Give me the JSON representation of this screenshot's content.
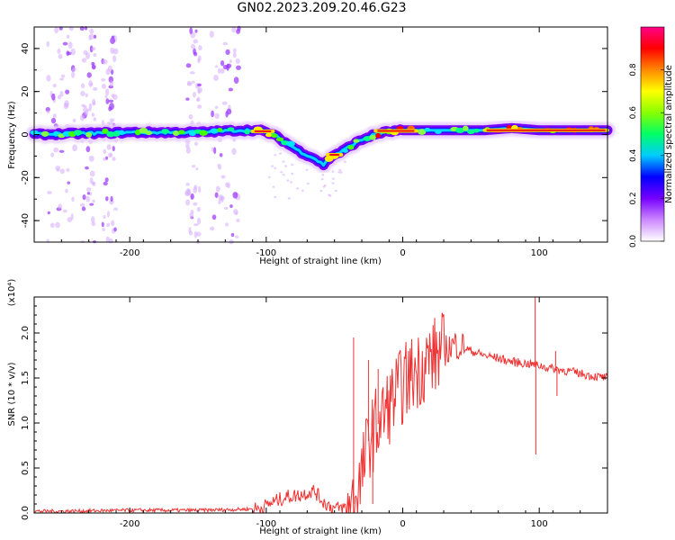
{
  "title": "GN02.2023.209.20.46.G23",
  "chart_data": [
    {
      "type": "heatmap",
      "xlabel": "Height of straight line (km)",
      "ylabel": "Frequency (Hz)",
      "xlim": [
        -270,
        150
      ],
      "ylim": [
        -50,
        50
      ],
      "xticks": [
        -200,
        -100,
        0,
        100
      ],
      "yticks": [
        -40,
        -20,
        0,
        20,
        40
      ],
      "colorbar": {
        "label": "Normalized spectral amplitude",
        "range": [
          0.0,
          1.0
        ],
        "ticks": [
          0.0,
          0.2,
          0.4,
          0.6,
          0.8
        ],
        "tick_labels": [
          "0.0",
          "0.2",
          "0.4",
          "0.6",
          "0.8"
        ],
        "colormap": [
          "#ffffff",
          "#cc88ff",
          "#7700ff",
          "#0000ff",
          "#00ccff",
          "#00ff66",
          "#88ff00",
          "#ffff00",
          "#ff8800",
          "#ff0000",
          "#ff0088"
        ]
      },
      "ridge": {
        "x": [
          -270,
          -200,
          -150,
          -120,
          -105,
          -95,
          -85,
          -75,
          -65,
          -58,
          -52,
          -45,
          -35,
          -25,
          -15,
          0,
          20,
          40,
          60,
          80,
          100,
          120,
          150
        ],
        "y": [
          0,
          1,
          1,
          2,
          2,
          0,
          -4,
          -8,
          -11,
          -14,
          -10,
          -8,
          -4,
          -1,
          1,
          2,
          2,
          2,
          2,
          3,
          2,
          2,
          2
        ],
        "peak_x_ranges": [
          [
            -110,
            -95
          ],
          [
            -55,
            -45
          ],
          [
            -20,
            10
          ],
          [
            60,
            150
          ]
        ]
      },
      "noise_bands_x": [
        [
          -260,
          -240
        ],
        [
          -235,
          -225
        ],
        [
          -220,
          -210
        ],
        [
          -158,
          -148
        ],
        [
          -140,
          -120
        ]
      ]
    },
    {
      "type": "line",
      "xlabel": "Height of straight line (km)",
      "ylabel": "SNR (10 * v/v)",
      "y_multiplier": "(x10⁴)",
      "xlim": [
        -270,
        150
      ],
      "ylim": [
        0,
        2.4
      ],
      "xticks": [
        -200,
        -100,
        0,
        100
      ],
      "yticks": [
        0.0,
        0.5,
        1.0,
        1.5,
        2.0
      ],
      "ytick_labels": [
        "0.0",
        "0.5",
        "1.0",
        "1.5",
        "2.0"
      ],
      "series": [
        {
          "color": "#ee3333",
          "x": [
            -270,
            -250,
            -200,
            -150,
            -120,
            -105,
            -95,
            -85,
            -75,
            -65,
            -58,
            -50,
            -42,
            -36,
            -30,
            -25,
            -20,
            -15,
            -10,
            -5,
            0,
            5,
            10,
            15,
            20,
            25,
            30,
            35,
            40,
            45,
            50,
            60,
            70,
            80,
            90,
            97,
            105,
            112,
            120,
            130,
            140,
            150
          ],
          "y": [
            0.02,
            0.02,
            0.03,
            0.03,
            0.04,
            0.05,
            0.12,
            0.18,
            0.2,
            0.25,
            0.12,
            0.05,
            0.06,
            0.1,
            0.4,
            0.8,
            0.95,
            1.05,
            1.2,
            1.32,
            1.42,
            1.52,
            1.58,
            1.65,
            1.72,
            1.76,
            1.8,
            1.85,
            1.88,
            1.84,
            1.8,
            1.75,
            1.72,
            1.68,
            1.66,
            1.65,
            1.62,
            1.6,
            1.58,
            1.55,
            1.52,
            1.5
          ]
        }
      ],
      "spikes": [
        {
          "x": -36,
          "y": 1.95
        },
        {
          "x": -25,
          "y": 1.7
        },
        {
          "x": -22,
          "y": 0.1
        },
        {
          "x": -18,
          "y": 1.6
        },
        {
          "x": 97,
          "y": 2.45
        },
        {
          "x": 97.5,
          "y": 0.65
        },
        {
          "x": 112,
          "y": 1.8
        },
        {
          "x": 113,
          "y": 1.3
        }
      ]
    }
  ]
}
